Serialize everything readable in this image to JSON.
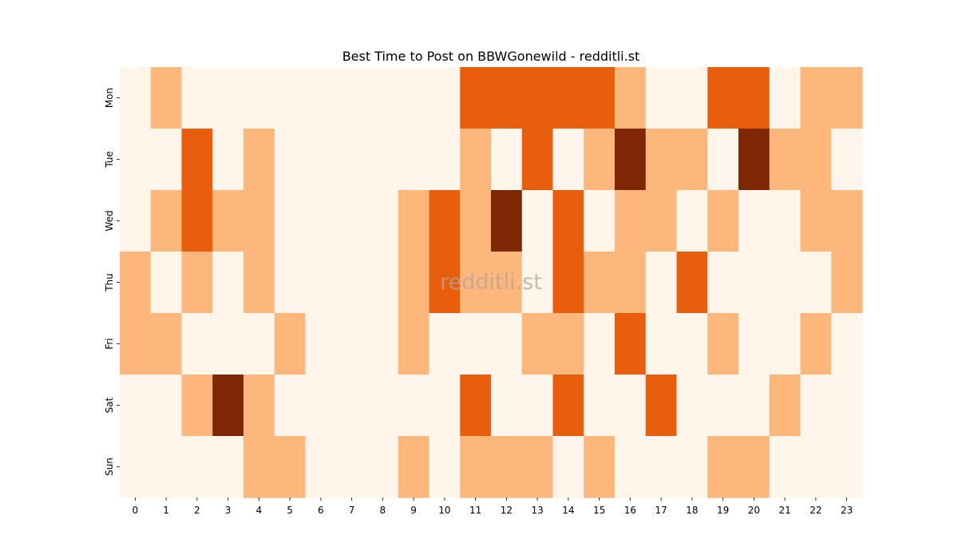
{
  "chart_data": {
    "type": "heatmap",
    "title": "Best Time to Post on BBWGonewild - redditli.st",
    "watermark": "redditli.st",
    "xlabel": "",
    "ylabel": "",
    "x": [
      "0",
      "1",
      "2",
      "3",
      "4",
      "5",
      "6",
      "7",
      "8",
      "9",
      "10",
      "11",
      "12",
      "13",
      "14",
      "15",
      "16",
      "17",
      "18",
      "19",
      "20",
      "21",
      "22",
      "23"
    ],
    "y": [
      "Mon",
      "Tue",
      "Wed",
      "Thu",
      "Fri",
      "Sat",
      "Sun"
    ],
    "values": [
      [
        0,
        1,
        0,
        0,
        0,
        0,
        0,
        0,
        0,
        0,
        0,
        2,
        2,
        2,
        2,
        2,
        1,
        0,
        0,
        2,
        2,
        0,
        1,
        1
      ],
      [
        0,
        0,
        2,
        0,
        1,
        0,
        0,
        0,
        0,
        0,
        0,
        1,
        0,
        2,
        0,
        1,
        3,
        1,
        1,
        0,
        3,
        1,
        1,
        0
      ],
      [
        0,
        1,
        2,
        1,
        1,
        0,
        0,
        0,
        0,
        1,
        2,
        1,
        3,
        0,
        2,
        0,
        1,
        1,
        0,
        1,
        0,
        0,
        1,
        1
      ],
      [
        1,
        0,
        1,
        0,
        1,
        0,
        0,
        0,
        0,
        1,
        2,
        1,
        1,
        0,
        2,
        1,
        1,
        0,
        2,
        0,
        0,
        0,
        0,
        1
      ],
      [
        1,
        1,
        0,
        0,
        0,
        1,
        0,
        0,
        0,
        1,
        0,
        0,
        0,
        1,
        1,
        0,
        2,
        0,
        0,
        1,
        0,
        0,
        1,
        0
      ],
      [
        0,
        0,
        1,
        3,
        1,
        0,
        0,
        0,
        0,
        0,
        0,
        2,
        0,
        0,
        2,
        0,
        0,
        2,
        0,
        0,
        0,
        1,
        0,
        0
      ],
      [
        0,
        0,
        0,
        0,
        1,
        1,
        0,
        0,
        0,
        1,
        0,
        1,
        1,
        1,
        0,
        1,
        0,
        0,
        0,
        1,
        1,
        0,
        0,
        0
      ]
    ],
    "color_scale": [
      "#fff5eb",
      "#fdb77b",
      "#e95e0d",
      "#7f2704"
    ],
    "colorbar": false,
    "grid": false
  }
}
